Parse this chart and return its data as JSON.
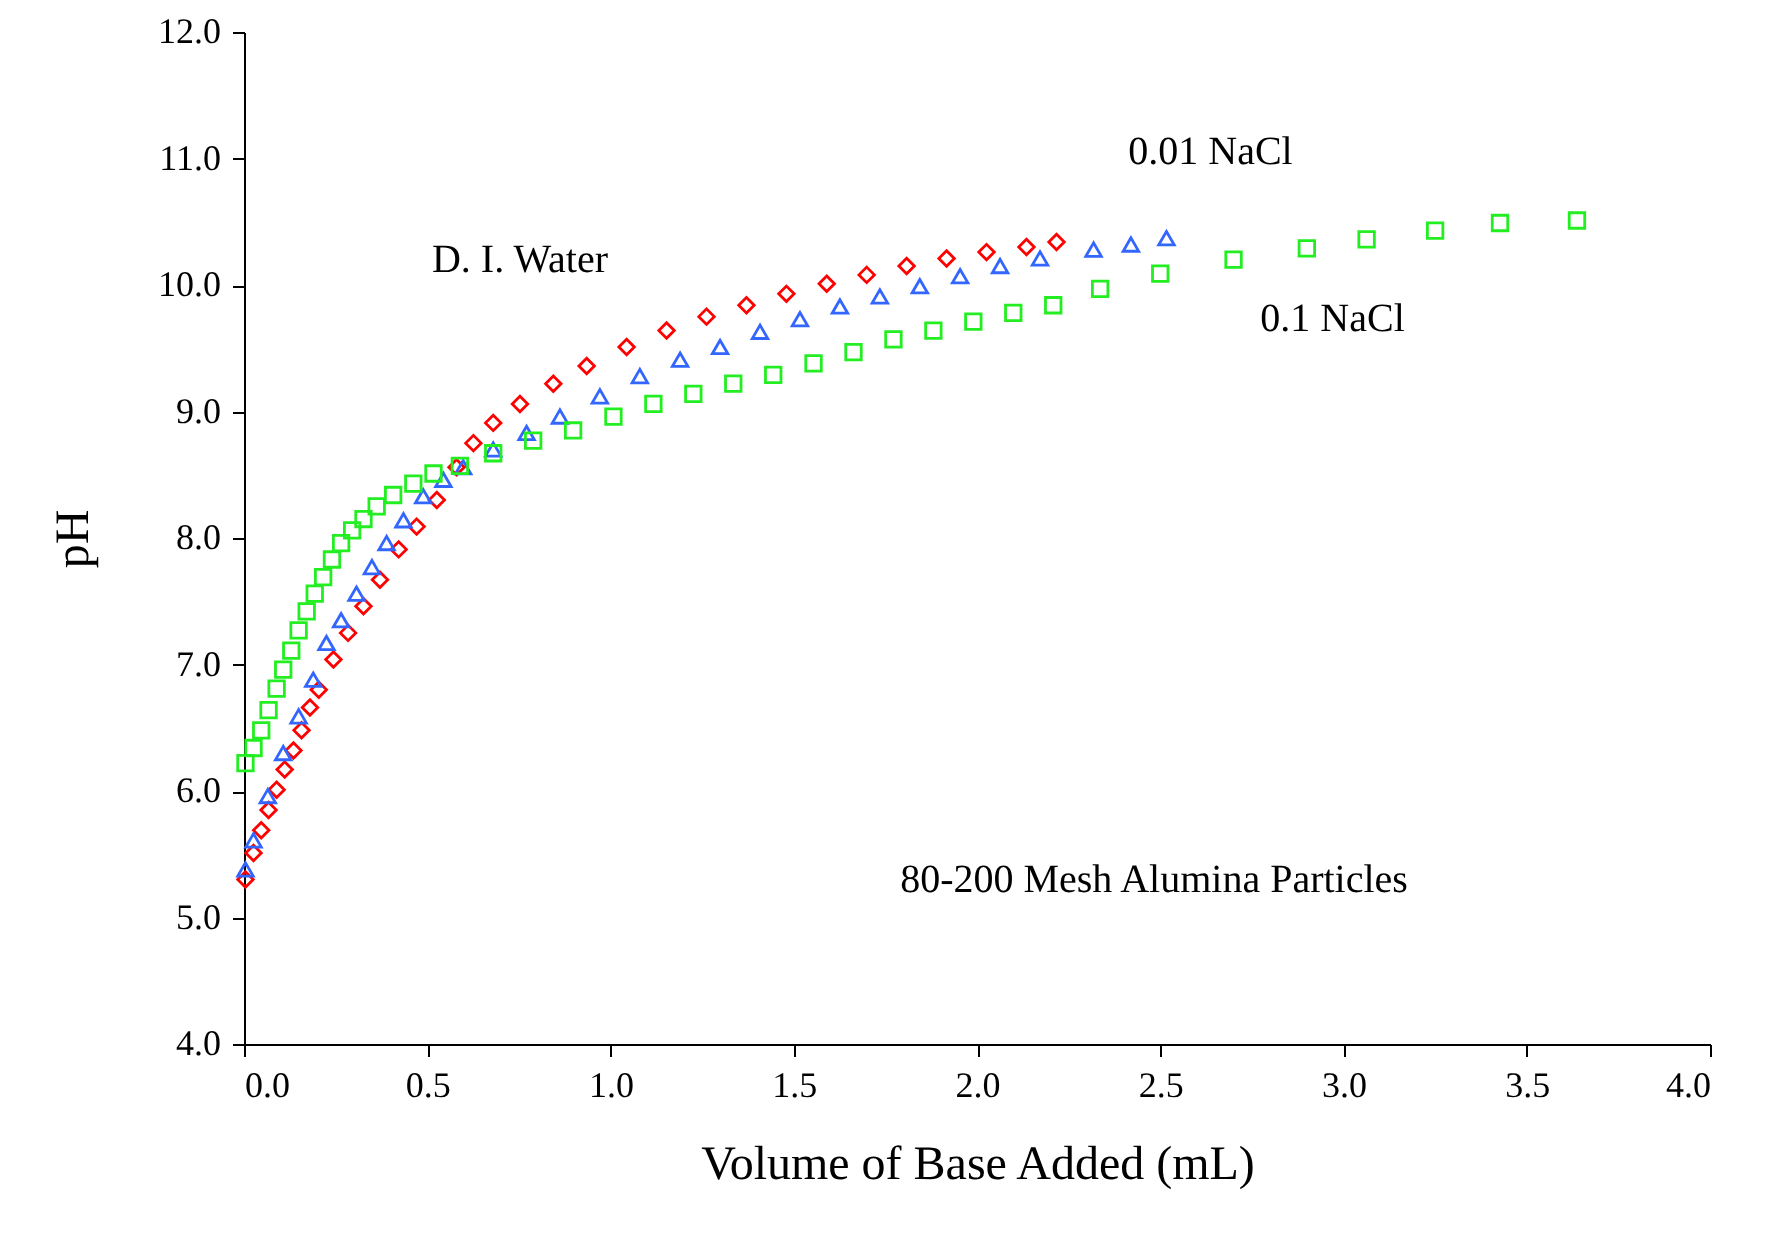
{
  "chart_data": {
    "type": "scatter",
    "xlabel": "Volume of Base Added (mL)",
    "ylabel": "pH",
    "xlim": [
      0,
      4
    ],
    "xticks": [
      {
        "value": 0,
        "label": "0.0"
      },
      {
        "value": 0.5,
        "label": "0.5"
      },
      {
        "value": 1,
        "label": "1.0"
      },
      {
        "value": 1.5,
        "label": "1.5"
      },
      {
        "value": 2,
        "label": "2.0"
      },
      {
        "value": 2.5,
        "label": "2.5"
      },
      {
        "value": 3,
        "label": "3.0"
      },
      {
        "value": 3.5,
        "label": "3.5"
      },
      {
        "value": 4,
        "label": "4.0"
      }
    ],
    "ylim": [
      4,
      12
    ],
    "yticks": [
      {
        "value": 4,
        "label": "4.0"
      },
      {
        "value": 5,
        "label": "5.0"
      },
      {
        "value": 6,
        "label": "6.0"
      },
      {
        "value": 7,
        "label": "7.0"
      },
      {
        "value": 8,
        "label": "8.0"
      },
      {
        "value": 9,
        "label": "9.0"
      },
      {
        "value": 10,
        "label": "10.0"
      },
      {
        "value": 11,
        "label": "11.0"
      },
      {
        "value": 12,
        "label": "12.0"
      }
    ],
    "grid": false,
    "series": [
      {
        "name": "D. I. Water",
        "color": "#ff0000",
        "marker": "diamond",
        "x": [
          0.004,
          0.026,
          0.047,
          0.067,
          0.089,
          0.111,
          0.135,
          0.157,
          0.18,
          0.204,
          0.244,
          0.284,
          0.326,
          0.371,
          0.422,
          0.471,
          0.526,
          0.58,
          0.626,
          0.68,
          0.753,
          0.844,
          0.935,
          1.044,
          1.153,
          1.262,
          1.371,
          1.48,
          1.59,
          1.699,
          1.808,
          1.917,
          2.026,
          2.135,
          2.217
        ],
        "values": [
          5.3,
          5.51,
          5.69,
          5.85,
          6.01,
          6.17,
          6.32,
          6.48,
          6.66,
          6.8,
          7.04,
          7.25,
          7.46,
          7.67,
          7.91,
          8.09,
          8.3,
          8.56,
          8.75,
          8.91,
          9.06,
          9.22,
          9.36,
          9.51,
          9.64,
          9.75,
          9.84,
          9.93,
          10.01,
          10.08,
          10.15,
          10.21,
          10.26,
          10.3,
          10.34
        ]
      },
      {
        "name": "0.01 NaCl",
        "color": "#3366ff",
        "marker": "triangle",
        "x": [
          0.004,
          0.026,
          0.065,
          0.107,
          0.149,
          0.189,
          0.225,
          0.265,
          0.307,
          0.349,
          0.389,
          0.435,
          0.489,
          0.544,
          0.598,
          0.68,
          0.771,
          0.862,
          0.971,
          1.08,
          1.19,
          1.299,
          1.408,
          1.517,
          1.626,
          1.735,
          1.844,
          1.954,
          2.063,
          2.172,
          2.318,
          2.42,
          2.517
        ],
        "values": [
          5.38,
          5.61,
          5.96,
          6.3,
          6.59,
          6.88,
          7.17,
          7.35,
          7.56,
          7.77,
          7.96,
          8.14,
          8.33,
          8.46,
          8.56,
          8.7,
          8.83,
          8.96,
          9.12,
          9.28,
          9.41,
          9.51,
          9.63,
          9.73,
          9.83,
          9.91,
          9.99,
          10.07,
          10.15,
          10.21,
          10.28,
          10.32,
          10.37
        ]
      },
      {
        "name": "0.1 NaCl",
        "color": "#22ee22",
        "marker": "square",
        "x": [
          0.004,
          0.026,
          0.047,
          0.067,
          0.089,
          0.107,
          0.129,
          0.149,
          0.171,
          0.193,
          0.216,
          0.24,
          0.265,
          0.295,
          0.326,
          0.362,
          0.407,
          0.462,
          0.517,
          0.589,
          0.68,
          0.789,
          0.898,
          1.008,
          1.117,
          1.226,
          1.335,
          1.444,
          1.554,
          1.663,
          1.772,
          1.881,
          1.99,
          2.099,
          2.208,
          2.336,
          2.5,
          2.7,
          2.9,
          3.063,
          3.25,
          3.427,
          3.637
        ],
        "values": [
          6.22,
          6.34,
          6.48,
          6.64,
          6.81,
          6.96,
          7.11,
          7.27,
          7.42,
          7.56,
          7.69,
          7.83,
          7.96,
          8.06,
          8.15,
          8.25,
          8.34,
          8.43,
          8.51,
          8.57,
          8.67,
          8.77,
          8.85,
          8.96,
          9.06,
          9.14,
          9.22,
          9.29,
          9.38,
          9.47,
          9.57,
          9.64,
          9.71,
          9.78,
          9.84,
          9.97,
          10.09,
          10.2,
          10.29,
          10.36,
          10.43,
          10.49,
          10.51
        ]
      }
    ],
    "annotations": [
      "80-200 Mesh Alumina Particles"
    ]
  }
}
